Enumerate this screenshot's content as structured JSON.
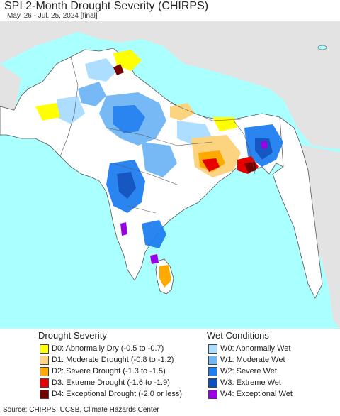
{
  "title": "SPI 2-Month Drought Severity (CHIRPS)",
  "subtitle": "May. 26 - Jul. 25, 2024 [final]",
  "legend": {
    "drought_title": "Drought Severity",
    "wet_title": "Wet Conditions",
    "drought": [
      {
        "label": "D0: Abnormally Dry (-0.5 to -0.7)",
        "color": "#ffff00"
      },
      {
        "label": "D1: Moderate Drought (-0.8 to -1.2)",
        "color": "#fcd37f"
      },
      {
        "label": "D2: Severe Drought (-1.3 to -1.5)",
        "color": "#ffaa00"
      },
      {
        "label": "D3: Extreme Drought (-1.6 to -1.9)",
        "color": "#e60000"
      },
      {
        "label": "D4: Exceptional Drought (-2.0 or less)",
        "color": "#730000"
      }
    ],
    "wet": [
      {
        "label": "W0: Abnormally Wet",
        "color": "#aaddff"
      },
      {
        "label": "W1: Moderate Wet",
        "color": "#6fb6f5"
      },
      {
        "label": "W2: Severe Wet",
        "color": "#1f7ff0"
      },
      {
        "label": "W3: Extreme Wet",
        "color": "#0a4fbf"
      },
      {
        "label": "W4: Exceptional Wet",
        "color": "#9a00e6"
      }
    ]
  },
  "source": "Source: CHIRPS, UCSB, Climate Hazards Center",
  "colors": {
    "ocean": "#aaffff",
    "land_in_domain": "#ffffff",
    "land_outside": "#e3e3e3",
    "borders": "#555555"
  }
}
